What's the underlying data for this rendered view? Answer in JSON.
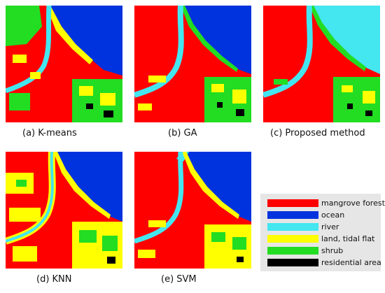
{
  "palette": {
    "mangrove": "#ff0000",
    "ocean": "#0033dd",
    "river": "#44e6f0",
    "land": "#ffff00",
    "shrub": "#22dd22",
    "residential": "#000000"
  },
  "panels": [
    {
      "id": "a",
      "caption": "(a)  K-means"
    },
    {
      "id": "b",
      "caption": "(b)  GA"
    },
    {
      "id": "c",
      "caption": "(c)  Proposed method"
    },
    {
      "id": "d",
      "caption": "(d)  KNN"
    },
    {
      "id": "e",
      "caption": "(e)  SVM"
    }
  ],
  "legend": [
    {
      "label": "mangrove forest",
      "color": "#ff0000"
    },
    {
      "label": "ocean",
      "color": "#0033dd"
    },
    {
      "label": "river",
      "color": "#44e6f0"
    },
    {
      "label": "land, tidal flat",
      "color": "#ffff00"
    },
    {
      "label": "shrub",
      "color": "#22dd22"
    },
    {
      "label": "residential area",
      "color": "#000000"
    }
  ]
}
